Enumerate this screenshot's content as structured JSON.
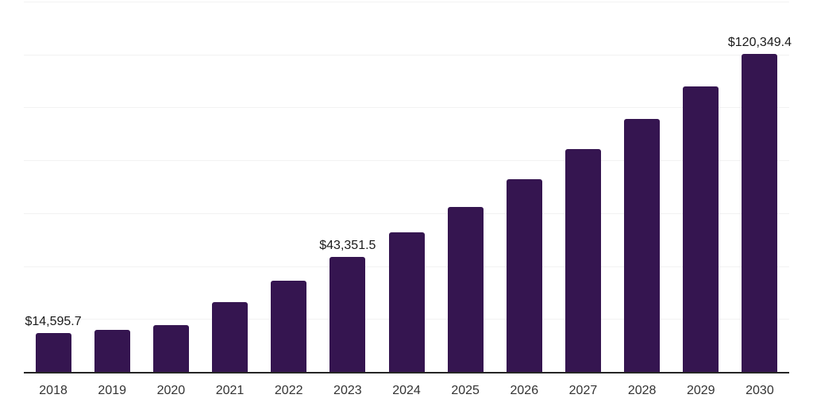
{
  "chart_data": {
    "type": "bar",
    "title": "",
    "xlabel": "",
    "ylabel": "",
    "categories": [
      "2018",
      "2019",
      "2020",
      "2021",
      "2022",
      "2023",
      "2024",
      "2025",
      "2026",
      "2027",
      "2028",
      "2029",
      "2030"
    ],
    "values": [
      14595.7,
      15900,
      17700,
      26400,
      34500,
      43351.5,
      52800,
      62500,
      72900,
      84200,
      95500,
      107800,
      120349.4
    ],
    "data_labels": {
      "2018": "$14,595.7",
      "2023": "$43,351.5",
      "2030": "$120,349.4"
    },
    "ylim": [
      0,
      140000
    ],
    "gridline_interval": 20000,
    "grid": "horizontal",
    "legend": "none",
    "y_axis_labels_visible": false,
    "colors": {
      "bar": "#351550",
      "gridline": "#f2f2f2",
      "axis": "#262626",
      "x_label": "#333333",
      "data_label": "#1a1a1a",
      "background": "#ffffff"
    }
  }
}
